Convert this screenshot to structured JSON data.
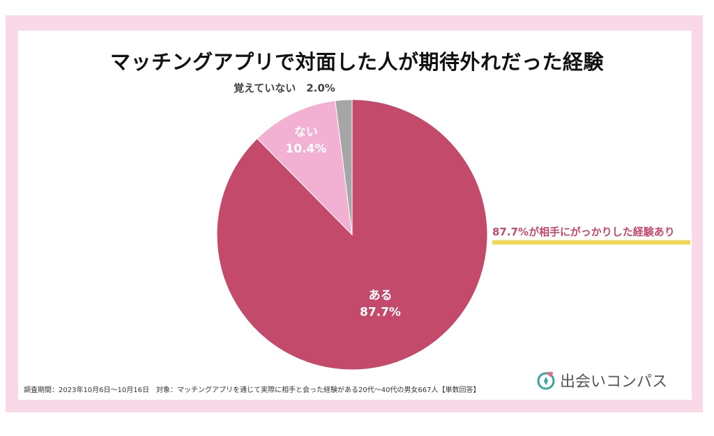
{
  "colors": {
    "frame": "#f9d9e7",
    "aru": "#c44a6c",
    "nai": "#f2b0d3",
    "oboete": "#a6a6a6",
    "callout_text": "#c44a6c",
    "callout_bar": "#f5d64a",
    "logo_accent": "#3aa59b"
  },
  "chart_data": {
    "type": "pie",
    "title": "マッチングアプリで対面した人が期待外れだった経験",
    "unit": "%",
    "slices": [
      {
        "label": "ある",
        "value": 87.7,
        "display": "87.7%",
        "color": "#c44a6c"
      },
      {
        "label": "ない",
        "value": 10.4,
        "display": "10.4%",
        "color": "#f2b0d3"
      },
      {
        "label": "覚えていない",
        "value": 2.0,
        "display": "2.0%",
        "color": "#a6a6a6"
      }
    ],
    "annotation": "87.7%が相手にがっかりした経験あり"
  },
  "footnote": "調査期間：2023年10月6日〜10月16日　対象：マッチングアプリを通じて実際に相手と会った経験がある20代〜40代の男女667人【単数回答】",
  "logo": {
    "text": "出会いコンパス",
    "icon": "compass-heart-icon"
  }
}
